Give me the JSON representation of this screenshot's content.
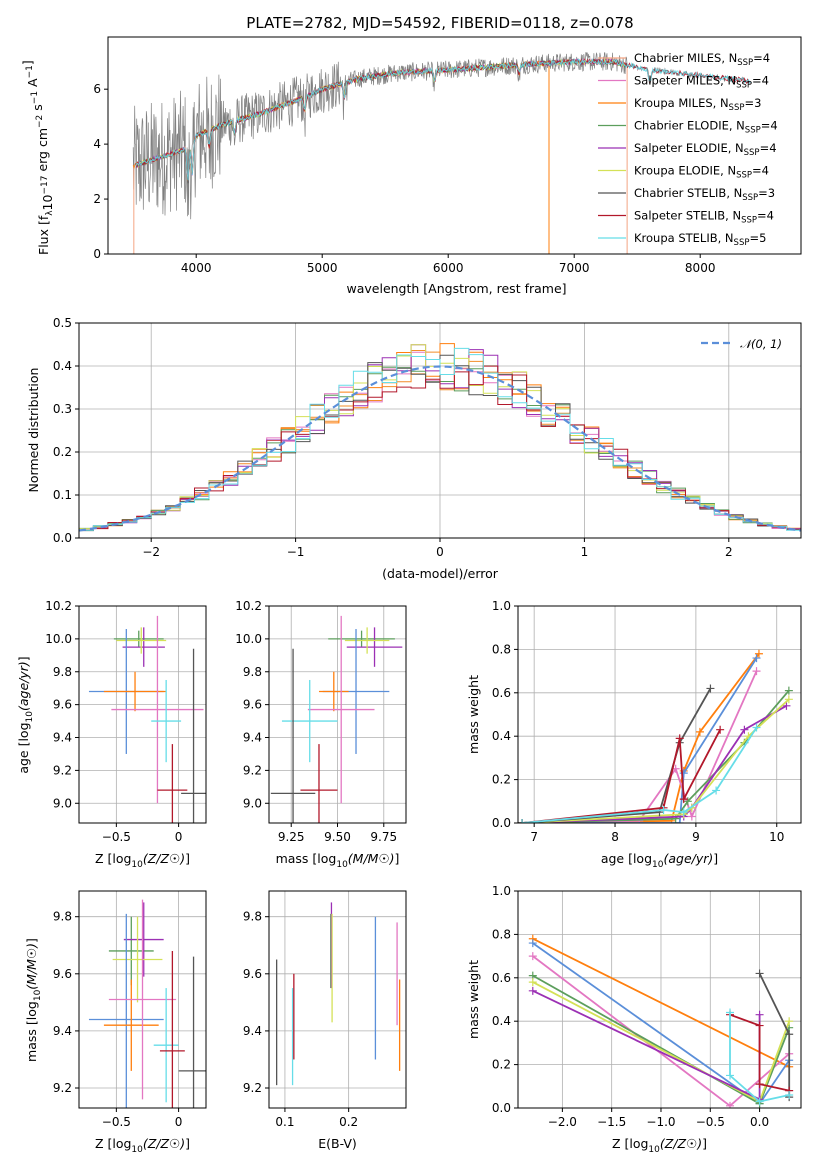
{
  "page": {
    "title": "PLATE=2782, MJD=54592, FIBERID=0118, z=0.078"
  },
  "colors": {
    "models": [
      "#f28c28",
      "#e377c2",
      "#ff7f0e",
      "#5c9e5c",
      "#9b30b4",
      "#d4e157",
      "#555555",
      "#b2182b",
      "#66dde8"
    ],
    "data_grey": "#808080",
    "gauss": "#5b8fd9"
  },
  "chart_data": [
    {
      "type": "line",
      "panel": "spectrum",
      "xlabel": "wavelength [Angstrom, rest frame]",
      "ylabel": "Flux [f_λ10^-17 erg cm^-2 s^-1 A^-1]",
      "xlim": [
        3300,
        8800
      ],
      "ylim": [
        0,
        7.9
      ],
      "xticks": [
        4000,
        5000,
        6000,
        7000,
        8000
      ],
      "yticks": [
        0,
        2,
        4,
        6
      ],
      "legend_position": "right",
      "series": [
        {
          "name": "Chabrier MILES, N_SSP=4",
          "label_main": "Chabrier MILES, N",
          "label_sub": "SSP",
          "label_tail": "=4",
          "color": "#f4a582"
        },
        {
          "name": "Salpeter MILES, N_SSP=4",
          "label_main": "Salpeter MILES, N",
          "label_sub": "SSP",
          "label_tail": "=4",
          "color": "#e377c2"
        },
        {
          "name": "Kroupa MILES, N_SSP=3",
          "label_main": "Kroupa MILES, N",
          "label_sub": "SSP",
          "label_tail": "=3",
          "color": "#ff7f0e"
        },
        {
          "name": "Chabrier ELODIE, N_SSP=4",
          "label_main": "Chabrier ELODIE, N",
          "label_sub": "SSP",
          "label_tail": "=4",
          "color": "#5c9e5c"
        },
        {
          "name": "Salpeter ELODIE, N_SSP=4",
          "label_main": "Salpeter ELODIE, N",
          "label_sub": "SSP",
          "label_tail": "=4",
          "color": "#9b30b4"
        },
        {
          "name": "Kroupa ELODIE, N_SSP=4",
          "label_main": "Kroupa ELODIE, N",
          "label_sub": "SSP",
          "label_tail": "=4",
          "color": "#d4e157"
        },
        {
          "name": "Chabrier STELIB, N_SSP=3",
          "label_main": "Chabrier STELIB, N",
          "label_sub": "SSP",
          "label_tail": "=3",
          "color": "#555555"
        },
        {
          "name": "Salpeter STELIB, N_SSP=4",
          "label_main": "Salpeter STELIB, N",
          "label_sub": "SSP",
          "label_tail": "=4",
          "color": "#b2182b"
        },
        {
          "name": "Kroupa STELIB, N_SSP=5",
          "label_main": "Kroupa STELIB, N",
          "label_sub": "SSP",
          "label_tail": "=5",
          "color": "#66dde8"
        }
      ],
      "continuum": {
        "x": [
          3500,
          3700,
          3900,
          4000,
          4200,
          4500,
          4800,
          5000,
          5300,
          5600,
          6000,
          6300,
          6600,
          7000,
          7300,
          7600,
          8000,
          8400
        ],
        "y": [
          3.2,
          3.5,
          3.8,
          4.3,
          4.7,
          5.1,
          5.6,
          6.0,
          6.4,
          6.6,
          6.7,
          6.8,
          6.9,
          7.0,
          7.0,
          6.7,
          6.5,
          6.3
        ]
      }
    },
    {
      "type": "bar",
      "panel": "residual-histogram",
      "xlabel": "(data-model)/error",
      "ylabel": "Normed distribution",
      "xlim": [
        -2.5,
        2.5
      ],
      "ylim": [
        0,
        0.5
      ],
      "xticks": [
        -2,
        -1,
        0,
        1,
        2
      ],
      "yticks": [
        0.0,
        0.1,
        0.2,
        0.3,
        0.4,
        0.5
      ],
      "legend": "𝒩(0, 1)",
      "legend_position": "top-right",
      "bin_width": 0.1
    },
    {
      "type": "scatter",
      "panel": "age-vs-Z",
      "xlabel": "Z [log10(Z/Z☉)]",
      "ylabel": "age [log10(age/yr)]",
      "xlim": [
        -0.8,
        0.22
      ],
      "ylim": [
        8.88,
        10.2
      ],
      "xticks": [
        -0.5,
        0.0
      ],
      "yticks": [
        9.0,
        9.2,
        9.4,
        9.6,
        9.8,
        10.0,
        10.2
      ],
      "points": [
        {
          "x": -0.32,
          "y": 10.0,
          "xerr": 0.2,
          "yerr": 0.05,
          "color": "#5c9e5c"
        },
        {
          "x": -0.28,
          "y": 9.95,
          "xerr": 0.17,
          "yerr": 0.12,
          "color": "#9b30b4"
        },
        {
          "x": -0.3,
          "y": 9.99,
          "xerr": 0.2,
          "yerr": 0.08,
          "color": "#d4e157"
        },
        {
          "x": -0.42,
          "y": 9.68,
          "xerr": 0.3,
          "yerr": 0.38,
          "color": "#5b8fd9"
        },
        {
          "x": -0.35,
          "y": 9.68,
          "xerr": 0.25,
          "yerr": 0.12,
          "color": "#ff7f0e"
        },
        {
          "x": -0.17,
          "y": 9.57,
          "xerr": 0.37,
          "yerr": 0.57,
          "color": "#e377c2"
        },
        {
          "x": -0.1,
          "y": 9.5,
          "xerr": 0.12,
          "yerr": 0.25,
          "color": "#66dde8"
        },
        {
          "x": -0.05,
          "y": 9.08,
          "xerr": 0.12,
          "yerr": 0.28,
          "color": "#b2182b"
        },
        {
          "x": 0.12,
          "y": 9.06,
          "xerr": 0.1,
          "yerr": 0.88,
          "color": "#555555"
        }
      ]
    },
    {
      "type": "scatter",
      "panel": "age-vs-mass",
      "xlabel": "mass [log10(M/M☉)]",
      "ylabel": "",
      "xlim": [
        9.13,
        9.87
      ],
      "ylim": [
        8.88,
        10.2
      ],
      "xticks": [
        9.25,
        9.5,
        9.75
      ],
      "yticks": [
        9.0,
        9.2,
        9.4,
        9.6,
        9.8,
        10.0,
        10.2
      ],
      "points": [
        {
          "x": 9.63,
          "y": 10.0,
          "xerr": 0.18,
          "yerr": 0.05,
          "color": "#5c9e5c"
        },
        {
          "x": 9.7,
          "y": 9.95,
          "xerr": 0.15,
          "yerr": 0.12,
          "color": "#9b30b4"
        },
        {
          "x": 9.66,
          "y": 9.99,
          "xerr": 0.12,
          "yerr": 0.08,
          "color": "#d4e157"
        },
        {
          "x": 9.6,
          "y": 9.68,
          "xerr": 0.18,
          "yerr": 0.38,
          "color": "#5b8fd9"
        },
        {
          "x": 9.48,
          "y": 9.68,
          "xerr": 0.08,
          "yerr": 0.12,
          "color": "#ff7f0e"
        },
        {
          "x": 9.52,
          "y": 9.57,
          "xerr": 0.18,
          "yerr": 0.57,
          "color": "#e377c2"
        },
        {
          "x": 9.35,
          "y": 9.5,
          "xerr": 0.15,
          "yerr": 0.25,
          "color": "#66dde8"
        },
        {
          "x": 9.4,
          "y": 9.08,
          "xerr": 0.1,
          "yerr": 0.28,
          "color": "#b2182b"
        },
        {
          "x": 9.26,
          "y": 9.06,
          "xerr": 0.12,
          "yerr": 0.88,
          "color": "#555555"
        }
      ]
    },
    {
      "type": "line",
      "panel": "mass-weight-vs-age",
      "xlabel": "age [log10(age/yr)]",
      "ylabel": "mass weight",
      "xlim": [
        6.8,
        10.3
      ],
      "ylim": [
        0,
        1
      ],
      "xticks": [
        7,
        8,
        9,
        10
      ],
      "yticks": [
        0.0,
        0.2,
        0.4,
        0.6,
        0.8,
        1.0
      ],
      "series": [
        {
          "color": "#ff7f0e",
          "x": [
            6.85,
            8.7,
            8.85,
            9.05,
            9.78
          ],
          "y": [
            0.0,
            0.01,
            0.24,
            0.42,
            0.78
          ]
        },
        {
          "color": "#e377c2",
          "x": [
            6.85,
            8.3,
            8.75,
            8.95,
            9.75
          ],
          "y": [
            0.0,
            0.01,
            0.25,
            0.03,
            0.7
          ]
        },
        {
          "color": "#5b8fd9",
          "x": [
            6.85,
            8.8,
            8.85,
            9.75
          ],
          "y": [
            0.0,
            0.0,
            0.23,
            0.76
          ]
        },
        {
          "color": "#5c9e5c",
          "x": [
            6.85,
            8.75,
            8.9,
            9.6,
            10.15
          ],
          "y": [
            0.0,
            0.02,
            0.1,
            0.37,
            0.61
          ]
        },
        {
          "color": "#9b30b4",
          "x": [
            6.85,
            8.85,
            8.95,
            9.6,
            10.12
          ],
          "y": [
            0.0,
            0.03,
            0.07,
            0.43,
            0.54
          ]
        },
        {
          "color": "#d4e157",
          "x": [
            6.85,
            8.85,
            8.95,
            9.65,
            10.15
          ],
          "y": [
            0.0,
            0.04,
            0.07,
            0.4,
            0.57
          ]
        },
        {
          "color": "#555555",
          "x": [
            6.85,
            8.55,
            8.8,
            9.18
          ],
          "y": [
            0.0,
            0.05,
            0.37,
            0.62
          ]
        },
        {
          "color": "#b2182b",
          "x": [
            6.85,
            8.6,
            8.8,
            8.85,
            9.3
          ],
          "y": [
            0.0,
            0.07,
            0.39,
            0.11,
            0.43
          ]
        },
        {
          "color": "#66dde8",
          "x": [
            6.85,
            8.6,
            8.85,
            9.25,
            9.75
          ],
          "y": [
            0.0,
            0.06,
            0.05,
            0.15,
            0.44
          ]
        }
      ]
    },
    {
      "type": "scatter",
      "panel": "mass-vs-Z",
      "xlabel": "Z [log10(Z/Z☉)]",
      "ylabel": "mass [log10(M/M☉)]",
      "xlim": [
        -0.8,
        0.22
      ],
      "ylim": [
        9.13,
        9.89
      ],
      "xticks": [
        -0.5,
        0.0
      ],
      "yticks": [
        9.2,
        9.4,
        9.6,
        9.8
      ],
      "points": [
        {
          "x": -0.38,
          "y": 9.68,
          "xerr": 0.18,
          "yerr": 0.12,
          "color": "#5c9e5c"
        },
        {
          "x": -0.28,
          "y": 9.72,
          "xerr": 0.16,
          "yerr": 0.13,
          "color": "#9b30b4"
        },
        {
          "x": -0.33,
          "y": 9.65,
          "xerr": 0.2,
          "yerr": 0.15,
          "color": "#d4e157"
        },
        {
          "x": -0.42,
          "y": 9.44,
          "xerr": 0.3,
          "yerr": 0.37,
          "color": "#5b8fd9"
        },
        {
          "x": -0.38,
          "y": 9.42,
          "xerr": 0.22,
          "yerr": 0.16,
          "color": "#ff7f0e"
        },
        {
          "x": -0.29,
          "y": 9.51,
          "xerr": 0.27,
          "yerr": 0.35,
          "color": "#e377c2"
        },
        {
          "x": -0.1,
          "y": 9.35,
          "xerr": 0.1,
          "yerr": 0.2,
          "color": "#66dde8"
        },
        {
          "x": -0.05,
          "y": 9.33,
          "xerr": 0.1,
          "yerr": 0.35,
          "color": "#b2182b"
        },
        {
          "x": 0.12,
          "y": 9.26,
          "xerr": 0.12,
          "yerr": 0.4,
          "color": "#555555"
        }
      ]
    },
    {
      "type": "scatter",
      "panel": "mass-vs-EBV",
      "xlabel": "E(B-V)",
      "ylabel": "",
      "xlim": [
        0.075,
        0.29
      ],
      "ylim": [
        9.13,
        9.89
      ],
      "xticks": [
        0.1,
        0.2
      ],
      "yticks": [
        9.2,
        9.4,
        9.6,
        9.8
      ],
      "points": [
        {
          "x": 0.087,
          "y": 9.43,
          "yerr": 0.22,
          "color": "#555555"
        },
        {
          "x": 0.112,
          "y": 9.38,
          "yerr": 0.17,
          "color": "#66dde8"
        },
        {
          "x": 0.114,
          "y": 9.45,
          "yerr": 0.15,
          "color": "#b2182b"
        },
        {
          "x": 0.172,
          "y": 9.68,
          "yerr": 0.13,
          "color": "#5c9e5c"
        },
        {
          "x": 0.173,
          "y": 9.7,
          "yerr": 0.15,
          "color": "#9b30b4"
        },
        {
          "x": 0.174,
          "y": 9.62,
          "yerr": 0.19,
          "color": "#d4e157"
        },
        {
          "x": 0.242,
          "y": 9.55,
          "yerr": 0.25,
          "color": "#5b8fd9"
        },
        {
          "x": 0.276,
          "y": 9.6,
          "yerr": 0.18,
          "color": "#e377c2"
        },
        {
          "x": 0.28,
          "y": 9.42,
          "yerr": 0.16,
          "color": "#ff7f0e"
        }
      ]
    },
    {
      "type": "line",
      "panel": "mass-weight-vs-Z",
      "xlabel": "Z [log10(Z/Z☉)]",
      "ylabel": "mass weight",
      "xlim": [
        -2.45,
        0.42
      ],
      "ylim": [
        0,
        1
      ],
      "xticks": [
        -2.0,
        -1.5,
        -1.0,
        -0.5,
        0.0
      ],
      "yticks": [
        0.0,
        0.2,
        0.4,
        0.6,
        0.8,
        1.0
      ],
      "series": [
        {
          "color": "#ff7f0e",
          "x": [
            -2.3,
            0.3
          ],
          "y": [
            0.78,
            0.19
          ]
        },
        {
          "color": "#5b8fd9",
          "x": [
            -2.3,
            0.0,
            0.3
          ],
          "y": [
            0.76,
            0.02,
            0.22
          ]
        },
        {
          "color": "#e377c2",
          "x": [
            -2.3,
            -0.3,
            0.3
          ],
          "y": [
            0.7,
            0.01,
            0.25
          ]
        },
        {
          "color": "#5c9e5c",
          "x": [
            -2.3,
            0.0,
            0.3
          ],
          "y": [
            0.61,
            0.02,
            0.37
          ]
        },
        {
          "color": "#d4e157",
          "x": [
            -2.3,
            0.0,
            0.3
          ],
          "y": [
            0.58,
            0.03,
            0.4
          ]
        },
        {
          "color": "#9b30b4",
          "x": [
            -2.3,
            0.0,
            0.0
          ],
          "y": [
            0.54,
            0.04,
            0.43
          ]
        },
        {
          "color": "#555555",
          "x": [
            0.0,
            0.3,
            0.3
          ],
          "y": [
            0.62,
            0.34,
            0.05
          ]
        },
        {
          "color": "#b2182b",
          "x": [
            -0.3,
            0.0,
            0.0,
            0.3
          ],
          "y": [
            0.43,
            0.38,
            0.11,
            0.08
          ]
        },
        {
          "color": "#66dde8",
          "x": [
            -0.3,
            -0.3,
            0.0,
            0.3
          ],
          "y": [
            0.44,
            0.15,
            0.03,
            0.06
          ]
        }
      ]
    }
  ]
}
